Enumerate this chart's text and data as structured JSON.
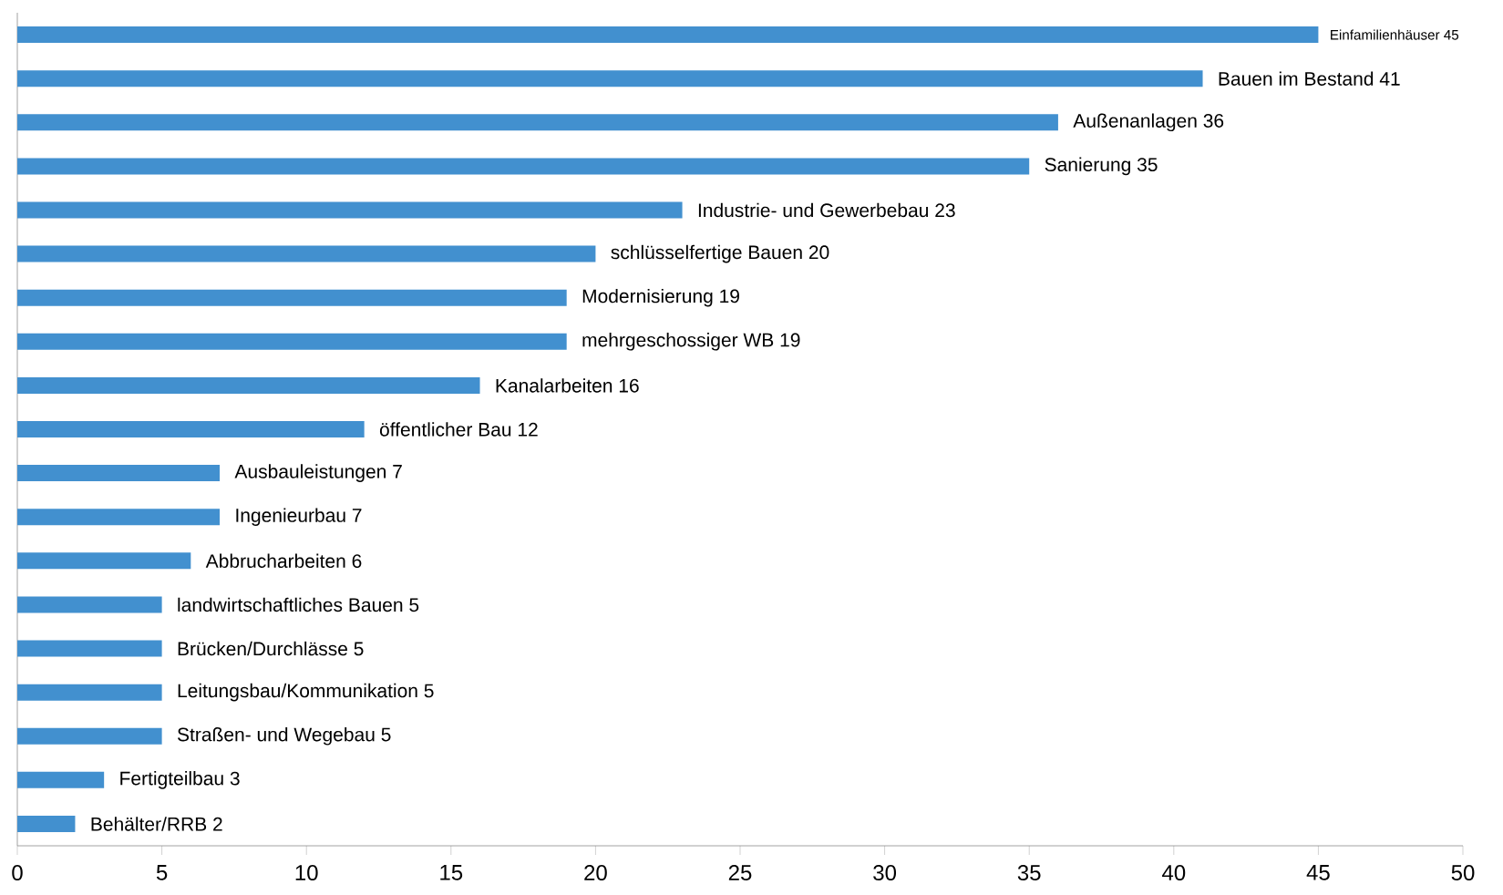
{
  "chart_data": {
    "type": "bar",
    "orientation": "horizontal",
    "categories": [
      null,
      null,
      null,
      null,
      null,
      null,
      null,
      null,
      null,
      null,
      null,
      null,
      null,
      null,
      null,
      null,
      null,
      null,
      null
    ],
    "values": [
      45,
      41,
      36,
      35,
      23,
      20,
      19,
      19,
      16,
      12,
      7,
      7,
      6,
      5,
      5,
      5,
      5,
      3,
      2
    ],
    "color": "#4290cf",
    "value_labels": [
      "Einfamilienhäuser 45",
      "Bauen im Bestand 41",
      "Außenanlagen 36",
      "Sanierung 35",
      "Industrie- und Gewerbebau 23",
      "schlüsselfertige Bauen 20",
      "Modernisierung 19",
      "mehrgeschossiger WB 19",
      "Kanalarbeiten 16",
      "öffentlicher Bau 12",
      "Ausbauleistungen 7",
      "Ingenieurbau 7",
      "Abbrucharbeiten 6",
      "landwirtschaftliches Bauen 5",
      "Brücken/Durchlässe 5",
      "Leitungsbau/Kommunikation 5",
      "Straßen- und Wegebau 5",
      "Fertigteilbau 3",
      "Behälter/RRB 2"
    ],
    "xlim": [
      0,
      50
    ],
    "xticks": [
      0,
      5,
      10,
      15,
      20,
      25,
      30,
      35,
      40,
      45,
      50
    ]
  }
}
